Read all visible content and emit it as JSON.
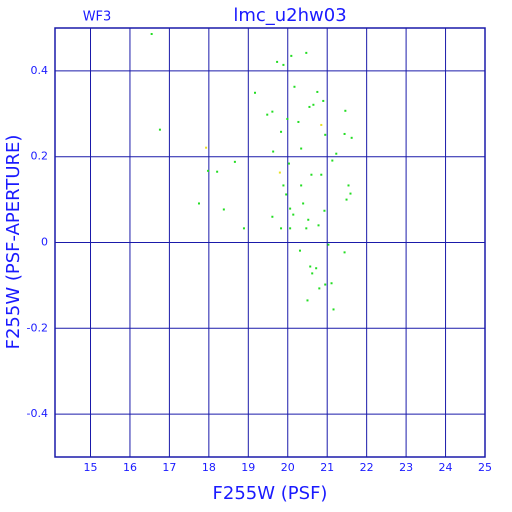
{
  "chart_data": {
    "type": "scatter",
    "title": "lmc_u2hw03",
    "annotation": "WF3",
    "x_label": "F255W (PSF)",
    "y_label": "F255W (PSF-APERTURE)",
    "xlim": [
      14.1,
      25
    ],
    "ylim": [
      -0.5,
      0.5
    ],
    "xticks": [
      15,
      16,
      17,
      18,
      19,
      20,
      21,
      22,
      23,
      24,
      25
    ],
    "yticks": [
      -0.4,
      -0.2,
      0,
      0.2,
      0.4
    ],
    "grid": true,
    "grid_color": "#1a1aaa",
    "series": [
      {
        "color": "#22dd22",
        "x": [
          16.55,
          16.76,
          17.98,
          18.21,
          18.66,
          17.75,
          18.38,
          18.89,
          19.73,
          19.89,
          20.09,
          20.47,
          20.17,
          19.17,
          19.48,
          19.61,
          19.83,
          19.99,
          20.55,
          20.65,
          20.75,
          20.9,
          20.95,
          19.63,
          20.03,
          20.27,
          20.34,
          20.6,
          20.85,
          21.13,
          21.23,
          21.46,
          21.44,
          21.62,
          21.54,
          21.59,
          21.49,
          19.89,
          19.96,
          20.34,
          20.39,
          20.06,
          19.61,
          19.83,
          20.14,
          20.06,
          20.52,
          20.47,
          20.78,
          20.93,
          21.03,
          20.31,
          20.57,
          20.72,
          20.62,
          20.8,
          20.95,
          21.11,
          20.5,
          21.16,
          21.44
        ],
        "y": [
          0.486,
          0.263,
          0.167,
          0.165,
          0.188,
          0.091,
          0.077,
          0.033,
          0.421,
          0.414,
          0.435,
          0.442,
          0.363,
          0.349,
          0.298,
          0.305,
          0.258,
          0.288,
          0.316,
          0.321,
          0.351,
          0.33,
          0.251,
          0.212,
          0.184,
          0.281,
          0.219,
          0.158,
          0.158,
          0.191,
          0.207,
          0.307,
          0.253,
          0.244,
          0.133,
          0.114,
          0.1,
          0.133,
          0.112,
          0.133,
          0.091,
          0.079,
          0.06,
          0.033,
          0.065,
          0.033,
          0.053,
          0.033,
          0.04,
          0.074,
          -0.005,
          -0.019,
          -0.056,
          -0.06,
          -0.072,
          -0.107,
          -0.098,
          -0.095,
          -0.135,
          -0.156,
          -0.023
        ]
      },
      {
        "color": "#e8e020",
        "x": [
          17.93,
          20.85,
          19.8
        ],
        "y": [
          0.221,
          0.274,
          0.163
        ]
      }
    ]
  }
}
